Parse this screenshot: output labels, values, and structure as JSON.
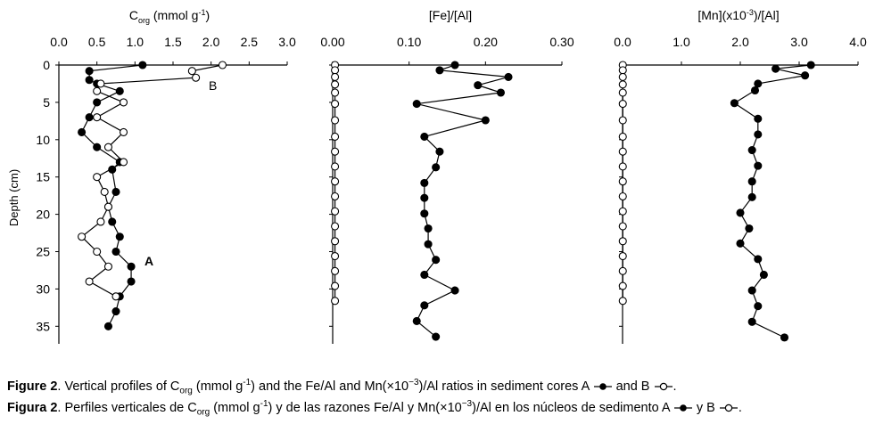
{
  "chart_data": [
    {
      "type": "line",
      "title_main": "C",
      "title_sub": "org",
      "title_rest": " (mmol g",
      "title_sup": "-1",
      "title_end": ")",
      "xticks": [
        "0.0",
        "0.5",
        "1.0",
        "1.5",
        "2.0",
        "2.5",
        "3.0"
      ],
      "xlim": [
        0,
        3.0
      ],
      "ylabel": "Depth (cm)",
      "yticks": [
        "0",
        "5",
        "10",
        "15",
        "20",
        "25",
        "30",
        "35"
      ],
      "ylim": [
        0,
        36
      ],
      "series": [
        {
          "name": "A",
          "marker": "filled",
          "points": [
            [
              1.1,
              0
            ],
            [
              0.4,
              0.8
            ],
            [
              0.4,
              2
            ],
            [
              0.5,
              2.5
            ],
            [
              0.8,
              3.5
            ],
            [
              0.5,
              5
            ],
            [
              0.4,
              7
            ],
            [
              0.3,
              9
            ],
            [
              0.5,
              11
            ],
            [
              0.8,
              13
            ],
            [
              0.7,
              14
            ],
            [
              0.75,
              17
            ],
            [
              0.65,
              19
            ],
            [
              0.7,
              21
            ],
            [
              0.8,
              23
            ],
            [
              0.75,
              25
            ],
            [
              0.95,
              27
            ],
            [
              0.95,
              29
            ],
            [
              0.8,
              31
            ],
            [
              0.75,
              33
            ],
            [
              0.65,
              35
            ]
          ]
        },
        {
          "name": "B",
          "marker": "open",
          "points": [
            [
              2.15,
              0
            ],
            [
              1.75,
              0.8
            ],
            [
              1.8,
              1.7
            ],
            [
              0.55,
              2.5
            ],
            [
              0.5,
              3.5
            ],
            [
              0.85,
              5
            ],
            [
              0.5,
              7
            ],
            [
              0.85,
              9
            ],
            [
              0.65,
              11
            ],
            [
              0.85,
              13
            ],
            [
              0.5,
              15
            ],
            [
              0.6,
              17
            ],
            [
              0.65,
              19
            ],
            [
              0.55,
              21
            ],
            [
              0.3,
              23
            ],
            [
              0.5,
              25
            ],
            [
              0.65,
              27
            ],
            [
              0.4,
              29
            ],
            [
              0.75,
              31
            ]
          ]
        }
      ],
      "annotations": [
        {
          "text": "B",
          "at": [
            1.95,
            2.6
          ]
        },
        {
          "text": "A",
          "at": [
            1.22,
            26.4
          ]
        }
      ]
    },
    {
      "type": "line",
      "title": "[Fe]/[Al]",
      "xticks": [
        "0.00",
        "0.10",
        "0.20",
        "0.30"
      ],
      "xlim": [
        0,
        0.3
      ],
      "yticks": [],
      "ylim": [
        0,
        36
      ],
      "series": [
        {
          "name": "A",
          "marker": "filled",
          "points": [
            [
              0.16,
              0
            ],
            [
              0.14,
              0.7
            ],
            [
              0.23,
              1.6
            ],
            [
              0.19,
              2.7
            ],
            [
              0.22,
              3.7
            ],
            [
              0.11,
              5.2
            ],
            [
              0.2,
              7.4
            ],
            [
              0.12,
              9.6
            ],
            [
              0.14,
              11.6
            ],
            [
              0.135,
              13.7
            ],
            [
              0.12,
              15.8
            ],
            [
              0.12,
              17.8
            ],
            [
              0.12,
              19.9
            ],
            [
              0.125,
              21.9
            ],
            [
              0.125,
              24
            ],
            [
              0.135,
              26.1
            ],
            [
              0.12,
              28.1
            ],
            [
              0.16,
              30.2
            ],
            [
              0.12,
              32.2
            ],
            [
              0.11,
              34.3
            ],
            [
              0.135,
              36.4
            ]
          ]
        },
        {
          "name": "B",
          "marker": "open",
          "points": [
            [
              0.003,
              0
            ],
            [
              0.003,
              0.7
            ],
            [
              0.003,
              1.6
            ],
            [
              0.003,
              2.6
            ],
            [
              0.003,
              3.7
            ],
            [
              0.003,
              5.2
            ],
            [
              0.003,
              7.4
            ],
            [
              0.003,
              9.6
            ],
            [
              0.003,
              11.6
            ],
            [
              0.003,
              13.6
            ],
            [
              0.003,
              15.6
            ],
            [
              0.003,
              17.6
            ],
            [
              0.003,
              19.6
            ],
            [
              0.003,
              21.6
            ],
            [
              0.003,
              23.6
            ],
            [
              0.003,
              25.6
            ],
            [
              0.003,
              27.6
            ],
            [
              0.003,
              29.6
            ],
            [
              0.003,
              31.6
            ]
          ]
        }
      ]
    },
    {
      "type": "line",
      "title": "[Mn](x10",
      "title_sup": "-3",
      "title_end": ")/[Al]",
      "xticks": [
        "0.0",
        "1.0",
        "2.0",
        "3.0",
        "4.0"
      ],
      "xlim": [
        0,
        4.0
      ],
      "yticks": [],
      "ylim": [
        0,
        36
      ],
      "series": [
        {
          "name": "A",
          "marker": "filled",
          "points": [
            [
              3.2,
              0
            ],
            [
              2.6,
              0.5
            ],
            [
              3.1,
              1.4
            ],
            [
              2.3,
              2.5
            ],
            [
              2.25,
              3.4
            ],
            [
              1.9,
              5.1
            ],
            [
              2.3,
              7.2
            ],
            [
              2.3,
              9.3
            ],
            [
              2.2,
              11.4
            ],
            [
              2.3,
              13.5
            ],
            [
              2.2,
              15.6
            ],
            [
              2.2,
              17.7
            ],
            [
              2.0,
              19.8
            ],
            [
              2.15,
              21.9
            ],
            [
              2.0,
              23.9
            ],
            [
              2.3,
              26
            ],
            [
              2.4,
              28.1
            ],
            [
              2.2,
              30.2
            ],
            [
              2.3,
              32.3
            ],
            [
              2.2,
              34.4
            ],
            [
              2.75,
              36.5
            ]
          ]
        },
        {
          "name": "B",
          "marker": "open",
          "points": [
            [
              0.004,
              0
            ],
            [
              0.004,
              0.7
            ],
            [
              0.004,
              1.6
            ],
            [
              0.004,
              2.6
            ],
            [
              0.004,
              3.7
            ],
            [
              0.004,
              5.2
            ],
            [
              0.004,
              7.4
            ],
            [
              0.004,
              9.6
            ],
            [
              0.004,
              11.6
            ],
            [
              0.004,
              13.6
            ],
            [
              0.004,
              15.6
            ],
            [
              0.004,
              17.6
            ],
            [
              0.004,
              19.6
            ],
            [
              0.004,
              21.6
            ],
            [
              0.004,
              23.6
            ],
            [
              0.004,
              25.6
            ],
            [
              0.004,
              27.6
            ],
            [
              0.004,
              29.6
            ],
            [
              0.004,
              31.6
            ]
          ]
        }
      ]
    }
  ],
  "caption": {
    "en_label": "Figure 2",
    "en_part1": ". Vertical profiles of C",
    "en_sub": "org",
    "en_part2": " (mmol g",
    "en_sup": "-1",
    "en_part3": ") and the Fe/Al and Mn(×10",
    "en_sup2": "−3",
    "en_part4": ")/Al ratios in sediment cores A ",
    "en_part5": " and B ",
    "en_part6": ".",
    "es_label": "Figura 2",
    "es_part1": ". Perfiles verticales de C",
    "es_sub": "org",
    "es_part2": " (mmol g",
    "es_sup": "-1",
    "es_part3": ") y de las razones Fe/Al y Mn(×10",
    "es_sup2": "−3",
    "es_part4": ")/Al en los núcleos de sedimento A ",
    "es_part5": " y  B ",
    "es_part6": "."
  }
}
